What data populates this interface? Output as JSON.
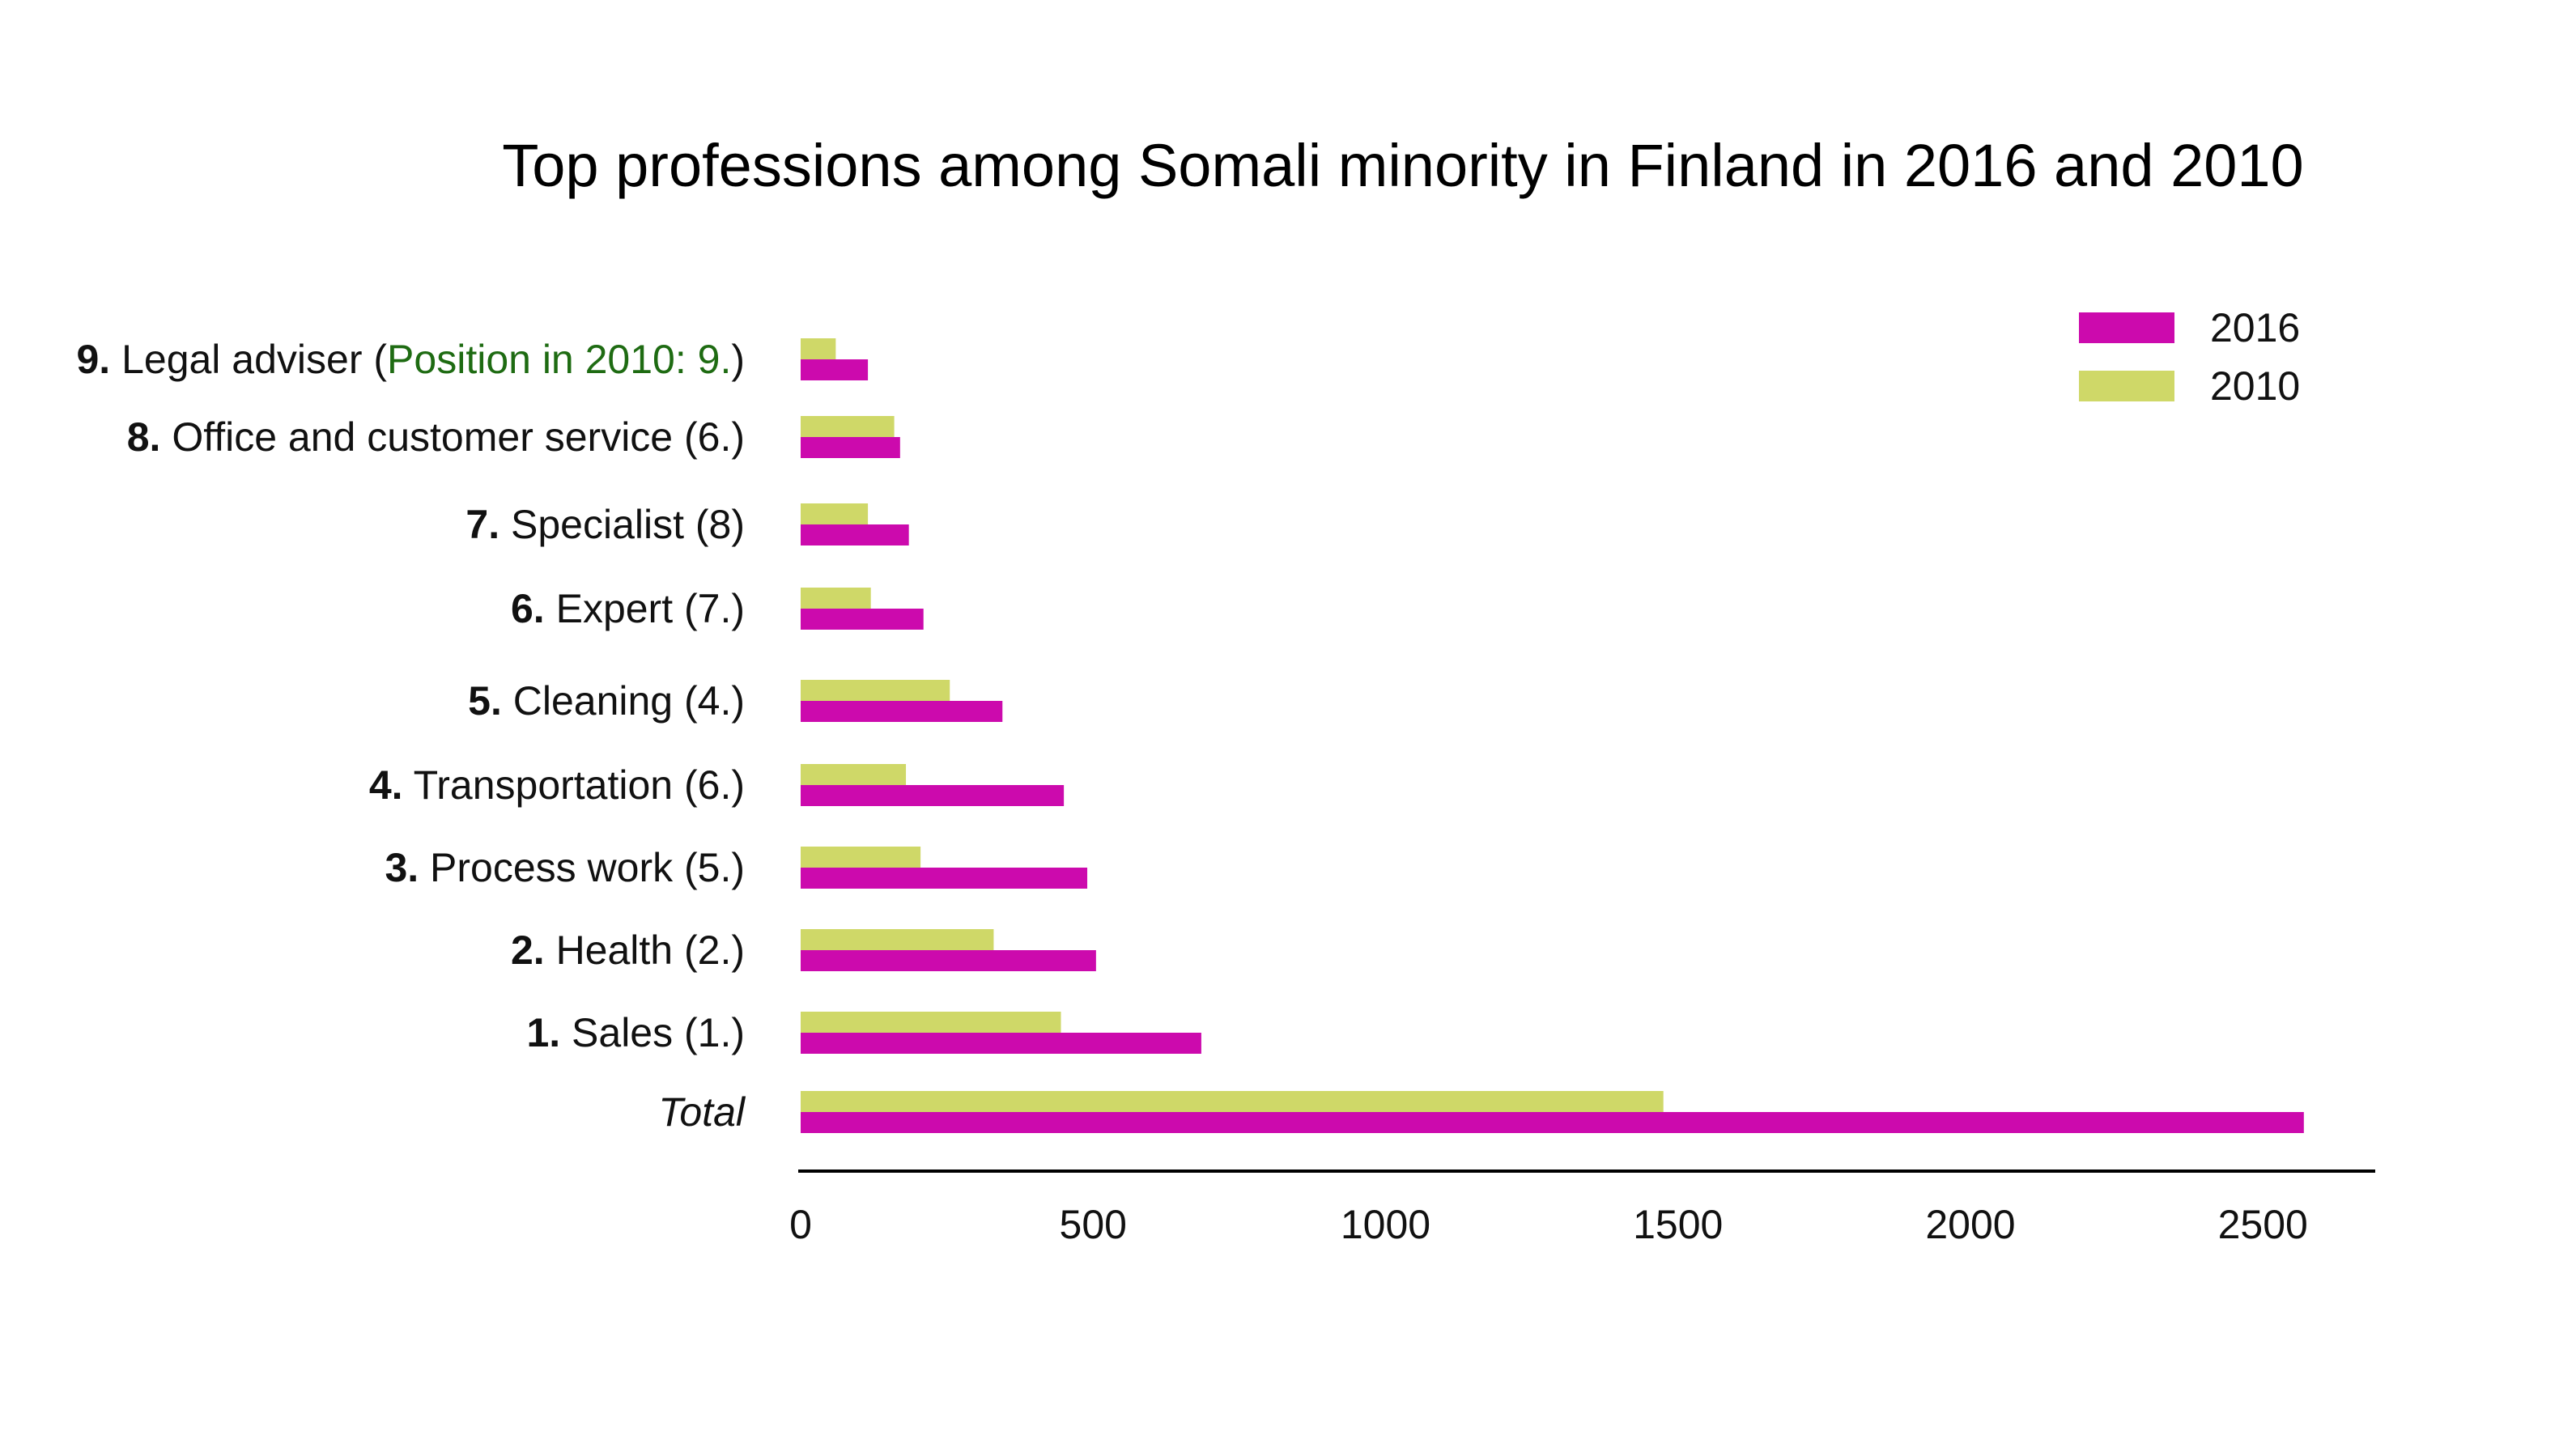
{
  "chart_data": {
    "type": "bar",
    "orientation": "horizontal",
    "title": "Top professions among Somali minority in Finland in 2016 and 2010",
    "xlabel": "",
    "ylabel": "",
    "xlim": [
      0,
      2700
    ],
    "x_ticks": [
      "0",
      "500",
      "1000",
      "1500",
      "2000",
      "2500"
    ],
    "x_tick_values": [
      0,
      500,
      1000,
      1500,
      2000,
      2500
    ],
    "grid": false,
    "legend_position": "top-right",
    "categories": [
      {
        "rank": "9.",
        "name": " Legal adviser (",
        "note": "Position in 2010: 9.",
        "suffix": ")",
        "italic": false
      },
      {
        "rank": "8.",
        "name": " Office and customer service (6.)",
        "note": "",
        "suffix": "",
        "italic": false
      },
      {
        "rank": "7.",
        "name": " Specialist  (8)",
        "note": "",
        "suffix": "",
        "italic": false
      },
      {
        "rank": "6.",
        "name": " Expert (7.)",
        "note": "",
        "suffix": "",
        "italic": false
      },
      {
        "rank": "5.",
        "name": " Cleaning (4.)",
        "note": "",
        "suffix": "",
        "italic": false
      },
      {
        "rank": "4.",
        "name": " Transportation (6.)",
        "note": "",
        "suffix": "",
        "italic": false
      },
      {
        "rank": "3.",
        "name": " Process work (5.)",
        "note": "",
        "suffix": "",
        "italic": false
      },
      {
        "rank": "2.",
        "name": " Health (2.)",
        "note": "",
        "suffix": "",
        "italic": false
      },
      {
        "rank": "1.",
        "name": " Sales (1.)",
        "note": "",
        "suffix": "",
        "italic": false
      },
      {
        "rank": "",
        "name": "Total",
        "note": "",
        "suffix": "",
        "italic": true
      }
    ],
    "series": [
      {
        "name": "2010",
        "color": "#cfd868",
        "values": [
          60,
          160,
          115,
          120,
          255,
          180,
          205,
          330,
          445,
          1475
        ]
      },
      {
        "name": "2016",
        "color": "#cc0aad",
        "values": [
          115,
          170,
          185,
          210,
          345,
          450,
          490,
          505,
          685,
          2570
        ]
      }
    ],
    "legend": [
      "2016",
      "2010"
    ],
    "note_color": "#1e6b12"
  }
}
